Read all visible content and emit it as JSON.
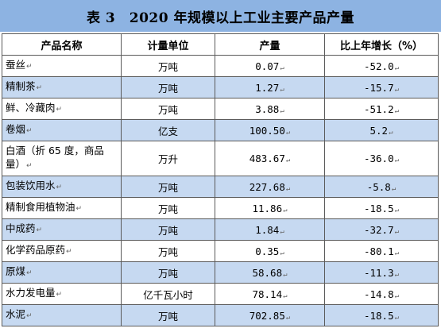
{
  "title": "表 3　2020 年规模以上工业主要产品产量",
  "mark": "↵",
  "header": {
    "product": "产品名称",
    "unit": "计量单位",
    "output": "产量",
    "growth": "比上年增长（%）"
  },
  "rows": [
    {
      "product": "蚕丝",
      "unit": "万吨",
      "output": "0.07",
      "growth": "-52.0"
    },
    {
      "product": "精制茶",
      "unit": "万吨",
      "output": "1.27",
      "growth": "-15.7"
    },
    {
      "product": "鲜、冷藏肉",
      "unit": "万吨",
      "output": "3.88",
      "growth": "-51.2"
    },
    {
      "product": "卷烟",
      "unit": "亿支",
      "output": "100.50",
      "growth": "5.2"
    },
    {
      "product": "白酒（折 65 度，商品量）",
      "unit": "万升",
      "output": "483.67",
      "growth": "-36.0"
    },
    {
      "product": "包装饮用水",
      "unit": "万吨",
      "output": "227.68",
      "growth": "-5.8"
    },
    {
      "product": "精制食用植物油",
      "unit": "万吨",
      "output": "11.86",
      "growth": "-18.5"
    },
    {
      "product": "中成药",
      "unit": "万吨",
      "output": "1.84",
      "growth": "-32.7"
    },
    {
      "product": "化学药品原药",
      "unit": "万吨",
      "output": "0.35",
      "growth": "-80.1"
    },
    {
      "product": "原煤",
      "unit": "万吨",
      "output": "58.68",
      "growth": "-11.3"
    },
    {
      "product": "水力发电量",
      "unit": "亿千瓦小时",
      "output": "78.14",
      "growth": "-14.8"
    },
    {
      "product": "水泥",
      "unit": "万吨",
      "output": "702.85",
      "growth": "-18.5"
    }
  ]
}
